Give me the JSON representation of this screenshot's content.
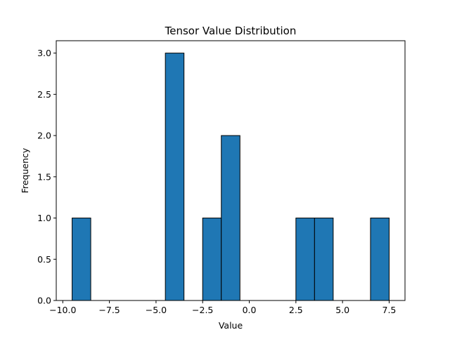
{
  "chart_data": {
    "type": "bar",
    "title": "Tensor Value Distribution",
    "xlabel": "Value",
    "ylabel": "Frequency",
    "xlim": [
      -10.35,
      8.35
    ],
    "ylim": [
      0,
      3.15
    ],
    "bin_width": 1,
    "bins": [
      {
        "x0": -9.5,
        "x1": -8.5,
        "count": 1
      },
      {
        "x0": -4.5,
        "x1": -3.5,
        "count": 3
      },
      {
        "x0": -2.5,
        "x1": -1.5,
        "count": 1
      },
      {
        "x0": -1.5,
        "x1": -0.5,
        "count": 2
      },
      {
        "x0": 2.5,
        "x1": 3.5,
        "count": 1
      },
      {
        "x0": 3.5,
        "x1": 4.5,
        "count": 1
      },
      {
        "x0": 6.5,
        "x1": 7.5,
        "count": 1
      }
    ],
    "x_ticks": [
      -10.0,
      -7.5,
      -5.0,
      -2.5,
      0.0,
      2.5,
      5.0,
      7.5
    ],
    "x_tick_labels": [
      "−10.0",
      "−7.5",
      "−5.0",
      "−2.5",
      "0.0",
      "2.5",
      "5.0",
      "7.5"
    ],
    "y_ticks": [
      0.0,
      0.5,
      1.0,
      1.5,
      2.0,
      2.5,
      3.0
    ],
    "y_tick_labels": [
      "0.0",
      "0.5",
      "1.0",
      "1.5",
      "2.0",
      "2.5",
      "3.0"
    ],
    "grid": false,
    "bar_color": "#1f77b4",
    "edge_color": "#000000"
  }
}
